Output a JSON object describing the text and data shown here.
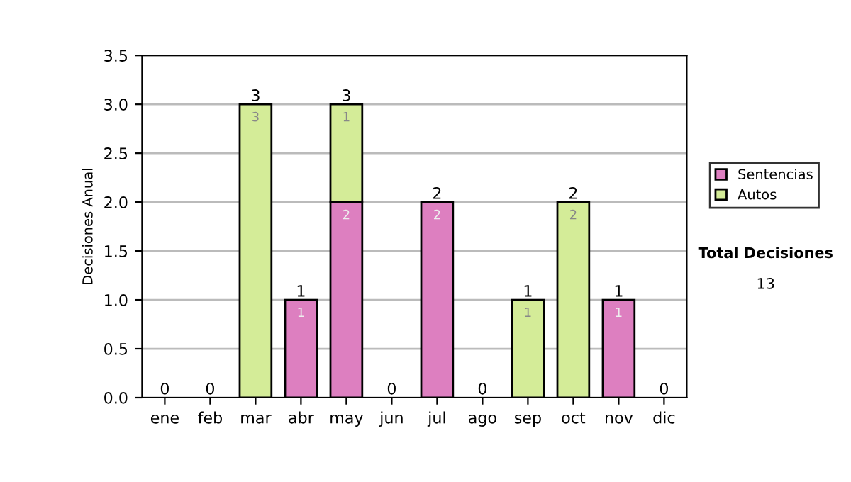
{
  "chart_data": {
    "type": "bar",
    "stacked": true,
    "ylabel": "Decisiones Anual",
    "categories": [
      "ene",
      "feb",
      "mar",
      "abr",
      "may",
      "jun",
      "jul",
      "ago",
      "sep",
      "oct",
      "nov",
      "dic"
    ],
    "series": [
      {
        "name": "Sentencias",
        "color": "#dd7fc0",
        "values": [
          0,
          0,
          0,
          1,
          2,
          0,
          2,
          0,
          0,
          0,
          1,
          0
        ],
        "value_labels": [
          null,
          null,
          null,
          "1",
          "2",
          null,
          "2",
          null,
          null,
          null,
          "1",
          null
        ]
      },
      {
        "name": "Autos",
        "color": "#d4ec98",
        "values": [
          0,
          0,
          3,
          0,
          1,
          0,
          0,
          0,
          1,
          2,
          0,
          0
        ],
        "value_labels": [
          null,
          null,
          "3",
          null,
          "1",
          null,
          null,
          null,
          "1",
          "2",
          null,
          null
        ]
      }
    ],
    "totals": [
      "0",
      "0",
      "3",
      "1",
      "3",
      "0",
      "2",
      "0",
      "1",
      "2",
      "1",
      "0"
    ],
    "ylim": [
      0,
      3.5
    ],
    "yticks": [
      {
        "value": 0,
        "label": "0.0"
      },
      {
        "value": 0.5,
        "label": "0.5"
      },
      {
        "value": 1,
        "label": "1.0"
      },
      {
        "value": 1.5,
        "label": "1.5"
      },
      {
        "value": 2,
        "label": "2.0"
      },
      {
        "value": 2.5,
        "label": "2.5"
      },
      {
        "value": 3,
        "label": "3.0"
      },
      {
        "value": 3.5,
        "label": "3.5"
      }
    ],
    "grid": "y",
    "legend": "right",
    "annotations": [
      "Total Decisiones",
      "13"
    ]
  }
}
